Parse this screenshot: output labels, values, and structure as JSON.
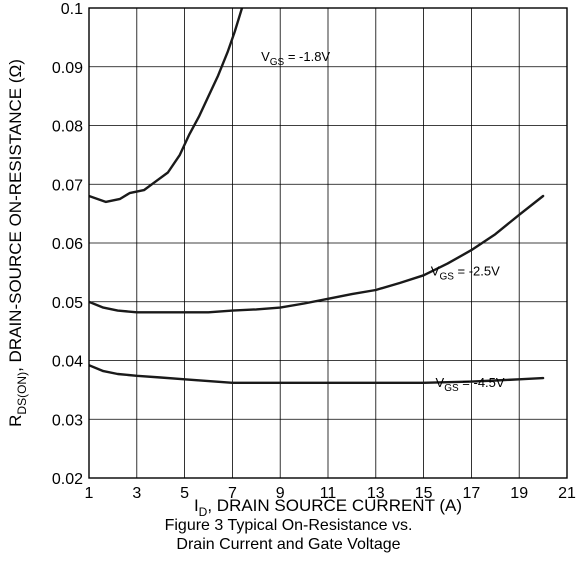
{
  "chart_data": {
    "type": "line",
    "xlabel": {
      "prefix": "I",
      "sub": "D",
      "rest": ", DRAIN SOURCE CURRENT (A)"
    },
    "ylabel": {
      "prefix": "R",
      "sub": "DS(ON)",
      "rest": ", DRAIN-SOURCE ON-RESISTANCE (Ω)"
    },
    "caption": [
      "Figure 3 Typical On-Resistance vs.",
      "Drain Current and Gate Voltage"
    ],
    "xlim": [
      1,
      21
    ],
    "ylim": [
      0.02,
      0.1
    ],
    "x_ticks": [
      1,
      3,
      5,
      7,
      9,
      11,
      13,
      15,
      17,
      19,
      21
    ],
    "y_ticks": [
      0.02,
      0.03,
      0.04,
      0.05,
      0.06,
      0.07,
      0.08,
      0.09,
      0.1
    ],
    "y_tick_labels": [
      "0.02",
      "0.03",
      "0.04",
      "0.05",
      "0.06",
      "0.07",
      "0.08",
      "0.09",
      "0.1"
    ],
    "grid": true,
    "series": [
      {
        "label_prefix": "V",
        "label_sub": "GS",
        "label_value": " = -1.8V",
        "x": [
          1,
          1.7,
          2.3,
          2.7,
          3.3,
          3.8,
          4.3,
          4.8,
          5.2,
          5.6,
          6.0,
          6.4,
          6.8,
          7.1,
          7.4
        ],
        "y": [
          0.068,
          0.067,
          0.0675,
          0.0685,
          0.069,
          0.0705,
          0.072,
          0.075,
          0.0785,
          0.0815,
          0.085,
          0.0885,
          0.0925,
          0.096,
          0.1
        ]
      },
      {
        "label_prefix": "V",
        "label_sub": "GS",
        "label_value": " = -2.5V",
        "x": [
          1,
          1.6,
          2.2,
          3,
          4,
          5,
          6,
          7,
          8,
          9,
          10,
          11,
          12,
          13,
          14,
          15,
          16,
          17,
          18,
          19,
          20
        ],
        "y": [
          0.05,
          0.049,
          0.0485,
          0.0482,
          0.0482,
          0.0482,
          0.0482,
          0.0485,
          0.0487,
          0.049,
          0.0497,
          0.0505,
          0.0513,
          0.052,
          0.0532,
          0.0545,
          0.0565,
          0.0588,
          0.0615,
          0.0648,
          0.068
        ]
      },
      {
        "label_prefix": "V",
        "label_sub": "GS",
        "label_value": " = -4.5V",
        "x": [
          1,
          1.6,
          2.2,
          3,
          4,
          5,
          6,
          7,
          8,
          9,
          10,
          11,
          12,
          13,
          14,
          15,
          16,
          17,
          18,
          19,
          20
        ],
        "y": [
          0.0392,
          0.0382,
          0.0377,
          0.0374,
          0.0371,
          0.0368,
          0.0365,
          0.0362,
          0.0362,
          0.0362,
          0.0362,
          0.0362,
          0.0362,
          0.0362,
          0.0362,
          0.0362,
          0.0363,
          0.0364,
          0.0366,
          0.0368,
          0.037
        ]
      }
    ]
  }
}
